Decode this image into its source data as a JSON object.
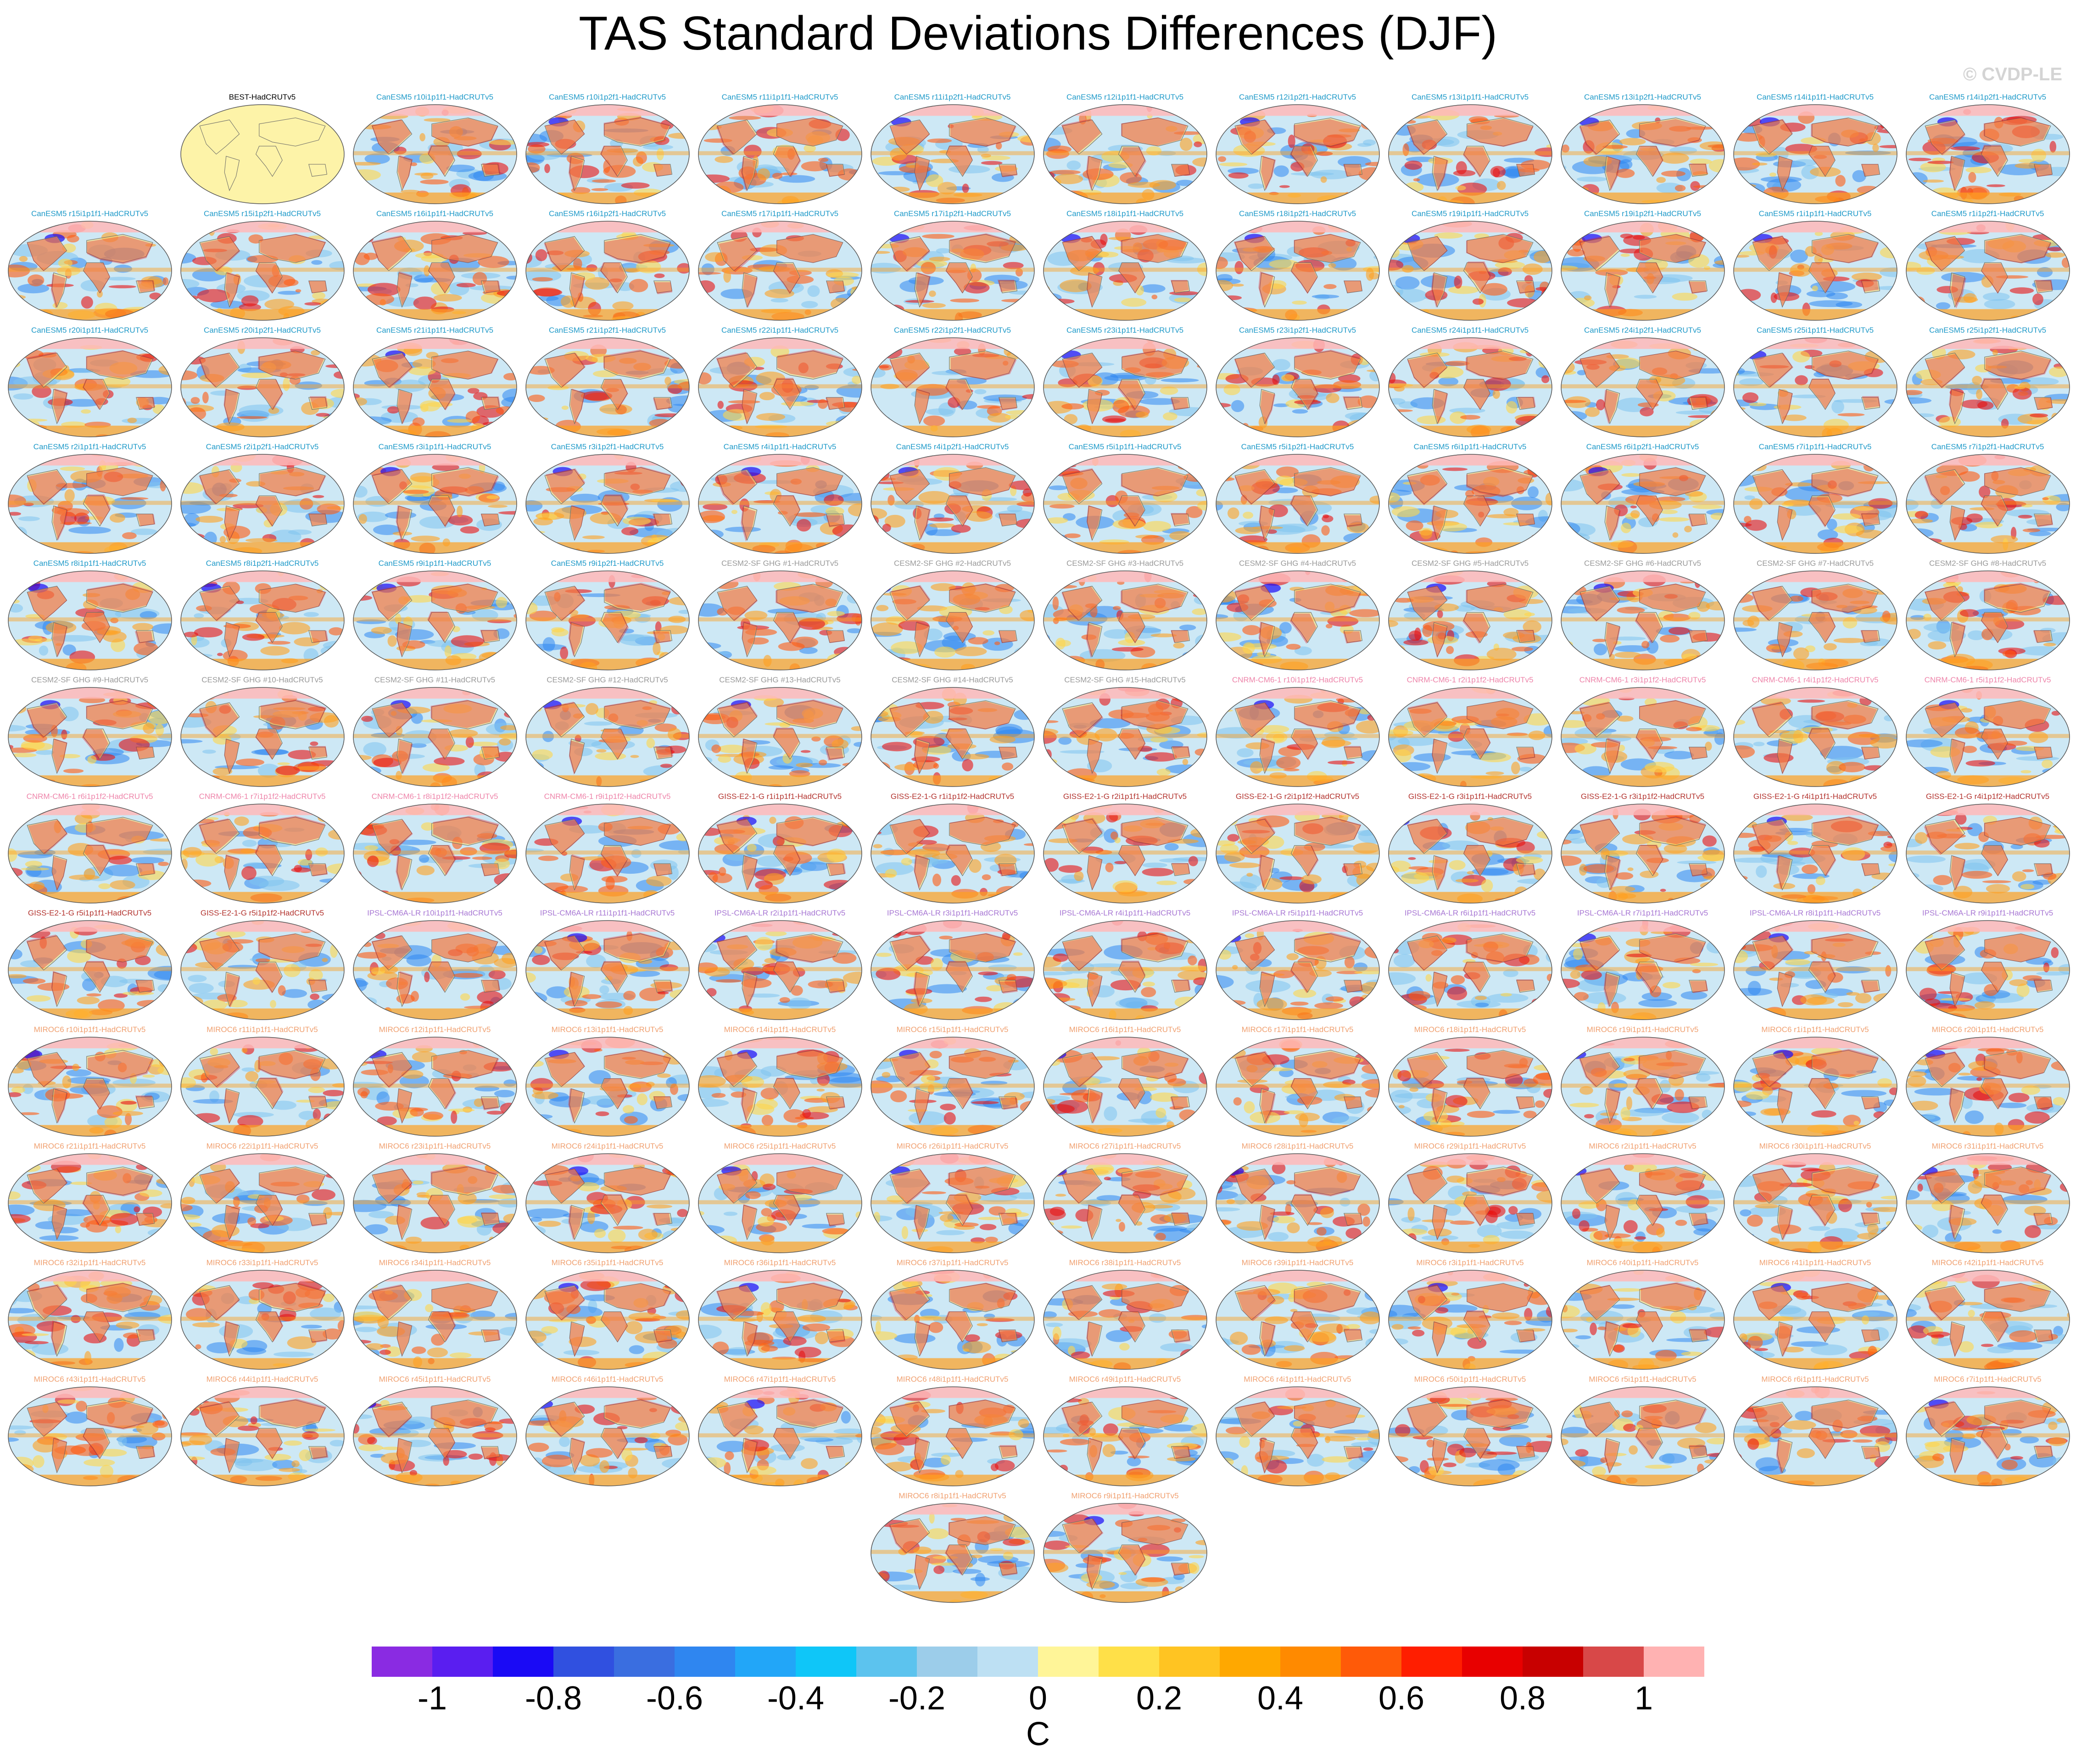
{
  "title": "TAS Standard Deviations Differences (DJF)",
  "watermark": "© CVDP-LE",
  "colorbar": {
    "units": "C",
    "tick_labels": [
      "-1",
      "-0.8",
      "-0.6",
      "-0.4",
      "-0.2",
      "0",
      "0.2",
      "0.4",
      "0.6",
      "0.8",
      "1"
    ],
    "colors": [
      "#8a2be2",
      "#5a1ef0",
      "#1a0af5",
      "#3050e0",
      "#3a6ee0",
      "#2f86f0",
      "#22a6f8",
      "#0fc6f8",
      "#5cc3ee",
      "#9ccdea",
      "#bde0f3",
      "#fff598",
      "#ffe048",
      "#ffc422",
      "#ffa800",
      "#ff8a00",
      "#ff5a08",
      "#ff1e00",
      "#e80000",
      "#c80000",
      "#d84848",
      "#ffb2b2"
    ]
  },
  "map_palette": {
    "ocean": "#cde8f5",
    "land": "#ffe070",
    "warm": [
      "#ffd64a",
      "#ffa020",
      "#ff5a10",
      "#e81010"
    ],
    "cold": [
      "#7fc3ee",
      "#2f86f0",
      "#1a0af5"
    ],
    "polar": "#ffb8b8",
    "best_base": "#fdf3a8",
    "outline": "#666666"
  },
  "label_colors": {
    "BEST": "#000000",
    "CanESM5": "#1f9ac9",
    "CESM2-SF GHG": "#9a9a9a",
    "CNRM-CM6-1": "#ee85aa",
    "GISS-E2-1-G": "#b3342f",
    "IPSL-CM6A-LR": "#a878d4",
    "MIROC6": "#f0a070"
  },
  "panels": [
    {
      "label": "BEST-HadCRUTv5",
      "family": "BEST"
    },
    {
      "label": "CanESM5 r10i1p1f1-HadCRUTv5",
      "family": "CanESM5"
    },
    {
      "label": "CanESM5 r10i1p2f1-HadCRUTv5",
      "family": "CanESM5"
    },
    {
      "label": "CanESM5 r11i1p1f1-HadCRUTv5",
      "family": "CanESM5"
    },
    {
      "label": "CanESM5 r11i1p2f1-HadCRUTv5",
      "family": "CanESM5"
    },
    {
      "label": "CanESM5 r12i1p1f1-HadCRUTv5",
      "family": "CanESM5"
    },
    {
      "label": "CanESM5 r12i1p2f1-HadCRUTv5",
      "family": "CanESM5"
    },
    {
      "label": "CanESM5 r13i1p1f1-HadCRUTv5",
      "family": "CanESM5"
    },
    {
      "label": "CanESM5 r13i1p2f1-HadCRUTv5",
      "family": "CanESM5"
    },
    {
      "label": "CanESM5 r14i1p1f1-HadCRUTv5",
      "family": "CanESM5"
    },
    {
      "label": "CanESM5 r14i1p2f1-HadCRUTv5",
      "family": "CanESM5"
    },
    {
      "label": "CanESM5 r15i1p1f1-HadCRUTv5",
      "family": "CanESM5"
    },
    {
      "label": "CanESM5 r15i1p2f1-HadCRUTv5",
      "family": "CanESM5"
    },
    {
      "label": "CanESM5 r16i1p1f1-HadCRUTv5",
      "family": "CanESM5"
    },
    {
      "label": "CanESM5 r16i1p2f1-HadCRUTv5",
      "family": "CanESM5"
    },
    {
      "label": "CanESM5 r17i1p1f1-HadCRUTv5",
      "family": "CanESM5"
    },
    {
      "label": "CanESM5 r17i1p2f1-HadCRUTv5",
      "family": "CanESM5"
    },
    {
      "label": "CanESM5 r18i1p1f1-HadCRUTv5",
      "family": "CanESM5"
    },
    {
      "label": "CanESM5 r18i1p2f1-HadCRUTv5",
      "family": "CanESM5"
    },
    {
      "label": "CanESM5 r19i1p1f1-HadCRUTv5",
      "family": "CanESM5"
    },
    {
      "label": "CanESM5 r19i1p2f1-HadCRUTv5",
      "family": "CanESM5"
    },
    {
      "label": "CanESM5 r1i1p1f1-HadCRUTv5",
      "family": "CanESM5"
    },
    {
      "label": "CanESM5 r1i1p2f1-HadCRUTv5",
      "family": "CanESM5"
    },
    {
      "label": "CanESM5 r20i1p1f1-HadCRUTv5",
      "family": "CanESM5"
    },
    {
      "label": "CanESM5 r20i1p2f1-HadCRUTv5",
      "family": "CanESM5"
    },
    {
      "label": "CanESM5 r21i1p1f1-HadCRUTv5",
      "family": "CanESM5"
    },
    {
      "label": "CanESM5 r21i1p2f1-HadCRUTv5",
      "family": "CanESM5"
    },
    {
      "label": "CanESM5 r22i1p1f1-HadCRUTv5",
      "family": "CanESM5"
    },
    {
      "label": "CanESM5 r22i1p2f1-HadCRUTv5",
      "family": "CanESM5"
    },
    {
      "label": "CanESM5 r23i1p1f1-HadCRUTv5",
      "family": "CanESM5"
    },
    {
      "label": "CanESM5 r23i1p2f1-HadCRUTv5",
      "family": "CanESM5"
    },
    {
      "label": "CanESM5 r24i1p1f1-HadCRUTv5",
      "family": "CanESM5"
    },
    {
      "label": "CanESM5 r24i1p2f1-HadCRUTv5",
      "family": "CanESM5"
    },
    {
      "label": "CanESM5 r25i1p1f1-HadCRUTv5",
      "family": "CanESM5"
    },
    {
      "label": "CanESM5 r25i1p2f1-HadCRUTv5",
      "family": "CanESM5"
    },
    {
      "label": "CanESM5 r2i1p1f1-HadCRUTv5",
      "family": "CanESM5"
    },
    {
      "label": "CanESM5 r2i1p2f1-HadCRUTv5",
      "family": "CanESM5"
    },
    {
      "label": "CanESM5 r3i1p1f1-HadCRUTv5",
      "family": "CanESM5"
    },
    {
      "label": "CanESM5 r3i1p2f1-HadCRUTv5",
      "family": "CanESM5"
    },
    {
      "label": "CanESM5 r4i1p1f1-HadCRUTv5",
      "family": "CanESM5"
    },
    {
      "label": "CanESM5 r4i1p2f1-HadCRUTv5",
      "family": "CanESM5"
    },
    {
      "label": "CanESM5 r5i1p1f1-HadCRUTv5",
      "family": "CanESM5"
    },
    {
      "label": "CanESM5 r5i1p2f1-HadCRUTv5",
      "family": "CanESM5"
    },
    {
      "label": "CanESM5 r6i1p1f1-HadCRUTv5",
      "family": "CanESM5"
    },
    {
      "label": "CanESM5 r6i1p2f1-HadCRUTv5",
      "family": "CanESM5"
    },
    {
      "label": "CanESM5 r7i1p1f1-HadCRUTv5",
      "family": "CanESM5"
    },
    {
      "label": "CanESM5 r7i1p2f1-HadCRUTv5",
      "family": "CanESM5"
    },
    {
      "label": "CanESM5 r8i1p1f1-HadCRUTv5",
      "family": "CanESM5"
    },
    {
      "label": "CanESM5 r8i1p2f1-HadCRUTv5",
      "family": "CanESM5"
    },
    {
      "label": "CanESM5 r9i1p1f1-HadCRUTv5",
      "family": "CanESM5"
    },
    {
      "label": "CanESM5 r9i1p2f1-HadCRUTv5",
      "family": "CanESM5"
    },
    {
      "label": "CESM2-SF GHG #1-HadCRUTv5",
      "family": "CESM2-SF GHG"
    },
    {
      "label": "CESM2-SF GHG #2-HadCRUTv5",
      "family": "CESM2-SF GHG"
    },
    {
      "label": "CESM2-SF GHG #3-HadCRUTv5",
      "family": "CESM2-SF GHG"
    },
    {
      "label": "CESM2-SF GHG #4-HadCRUTv5",
      "family": "CESM2-SF GHG"
    },
    {
      "label": "CESM2-SF GHG #5-HadCRUTv5",
      "family": "CESM2-SF GHG"
    },
    {
      "label": "CESM2-SF GHG #6-HadCRUTv5",
      "family": "CESM2-SF GHG"
    },
    {
      "label": "CESM2-SF GHG #7-HadCRUTv5",
      "family": "CESM2-SF GHG"
    },
    {
      "label": "CESM2-SF GHG #8-HadCRUTv5",
      "family": "CESM2-SF GHG"
    },
    {
      "label": "CESM2-SF GHG #9-HadCRUTv5",
      "family": "CESM2-SF GHG"
    },
    {
      "label": "CESM2-SF GHG #10-HadCRUTv5",
      "family": "CESM2-SF GHG"
    },
    {
      "label": "CESM2-SF GHG #11-HadCRUTv5",
      "family": "CESM2-SF GHG"
    },
    {
      "label": "CESM2-SF GHG #12-HadCRUTv5",
      "family": "CESM2-SF GHG"
    },
    {
      "label": "CESM2-SF GHG #13-HadCRUTv5",
      "family": "CESM2-SF GHG"
    },
    {
      "label": "CESM2-SF GHG #14-HadCRUTv5",
      "family": "CESM2-SF GHG"
    },
    {
      "label": "CESM2-SF GHG #15-HadCRUTv5",
      "family": "CESM2-SF GHG"
    },
    {
      "label": "CNRM-CM6-1 r10i1p1f2-HadCRUTv5",
      "family": "CNRM-CM6-1"
    },
    {
      "label": "CNRM-CM6-1 r2i1p1f2-HadCRUTv5",
      "family": "CNRM-CM6-1"
    },
    {
      "label": "CNRM-CM6-1 r3i1p1f2-HadCRUTv5",
      "family": "CNRM-CM6-1"
    },
    {
      "label": "CNRM-CM6-1 r4i1p1f2-HadCRUTv5",
      "family": "CNRM-CM6-1"
    },
    {
      "label": "CNRM-CM6-1 r5i1p1f2-HadCRUTv5",
      "family": "CNRM-CM6-1"
    },
    {
      "label": "CNRM-CM6-1 r6i1p1f2-HadCRUTv5",
      "family": "CNRM-CM6-1"
    },
    {
      "label": "CNRM-CM6-1 r7i1p1f2-HadCRUTv5",
      "family": "CNRM-CM6-1"
    },
    {
      "label": "CNRM-CM6-1 r8i1p1f2-HadCRUTv5",
      "family": "CNRM-CM6-1"
    },
    {
      "label": "CNRM-CM6-1 r9i1p1f2-HadCRUTv5",
      "family": "CNRM-CM6-1"
    },
    {
      "label": "GISS-E2-1-G r1i1p1f1-HadCRUTv5",
      "family": "GISS-E2-1-G"
    },
    {
      "label": "GISS-E2-1-G r1i1p1f2-HadCRUTv5",
      "family": "GISS-E2-1-G"
    },
    {
      "label": "GISS-E2-1-G r2i1p1f1-HadCRUTv5",
      "family": "GISS-E2-1-G"
    },
    {
      "label": "GISS-E2-1-G r2i1p1f2-HadCRUTv5",
      "family": "GISS-E2-1-G"
    },
    {
      "label": "GISS-E2-1-G r3i1p1f1-HadCRUTv5",
      "family": "GISS-E2-1-G"
    },
    {
      "label": "GISS-E2-1-G r3i1p1f2-HadCRUTv5",
      "family": "GISS-E2-1-G"
    },
    {
      "label": "GISS-E2-1-G r4i1p1f1-HadCRUTv5",
      "family": "GISS-E2-1-G"
    },
    {
      "label": "GISS-E2-1-G r4i1p1f2-HadCRUTv5",
      "family": "GISS-E2-1-G"
    },
    {
      "label": "GISS-E2-1-G r5i1p1f1-HadCRUTv5",
      "family": "GISS-E2-1-G"
    },
    {
      "label": "GISS-E2-1-G r5i1p1f2-HadCRUTv5",
      "family": "GISS-E2-1-G"
    },
    {
      "label": "IPSL-CM6A-LR r10i1p1f1-HadCRUTv5",
      "family": "IPSL-CM6A-LR"
    },
    {
      "label": "IPSL-CM6A-LR r11i1p1f1-HadCRUTv5",
      "family": "IPSL-CM6A-LR"
    },
    {
      "label": "IPSL-CM6A-LR r2i1p1f1-HadCRUTv5",
      "family": "IPSL-CM6A-LR"
    },
    {
      "label": "IPSL-CM6A-LR r3i1p1f1-HadCRUTv5",
      "family": "IPSL-CM6A-LR"
    },
    {
      "label": "IPSL-CM6A-LR r4i1p1f1-HadCRUTv5",
      "family": "IPSL-CM6A-LR"
    },
    {
      "label": "IPSL-CM6A-LR r5i1p1f1-HadCRUTv5",
      "family": "IPSL-CM6A-LR"
    },
    {
      "label": "IPSL-CM6A-LR r6i1p1f1-HadCRUTv5",
      "family": "IPSL-CM6A-LR"
    },
    {
      "label": "IPSL-CM6A-LR r7i1p1f1-HadCRUTv5",
      "family": "IPSL-CM6A-LR"
    },
    {
      "label": "IPSL-CM6A-LR r8i1p1f1-HadCRUTv5",
      "family": "IPSL-CM6A-LR"
    },
    {
      "label": "IPSL-CM6A-LR r9i1p1f1-HadCRUTv5",
      "family": "IPSL-CM6A-LR"
    },
    {
      "label": "MIROC6 r10i1p1f1-HadCRUTv5",
      "family": "MIROC6"
    },
    {
      "label": "MIROC6 r11i1p1f1-HadCRUTv5",
      "family": "MIROC6"
    },
    {
      "label": "MIROC6 r12i1p1f1-HadCRUTv5",
      "family": "MIROC6"
    },
    {
      "label": "MIROC6 r13i1p1f1-HadCRUTv5",
      "family": "MIROC6"
    },
    {
      "label": "MIROC6 r14i1p1f1-HadCRUTv5",
      "family": "MIROC6"
    },
    {
      "label": "MIROC6 r15i1p1f1-HadCRUTv5",
      "family": "MIROC6"
    },
    {
      "label": "MIROC6 r16i1p1f1-HadCRUTv5",
      "family": "MIROC6"
    },
    {
      "label": "MIROC6 r17i1p1f1-HadCRUTv5",
      "family": "MIROC6"
    },
    {
      "label": "MIROC6 r18i1p1f1-HadCRUTv5",
      "family": "MIROC6"
    },
    {
      "label": "MIROC6 r19i1p1f1-HadCRUTv5",
      "family": "MIROC6"
    },
    {
      "label": "MIROC6 r1i1p1f1-HadCRUTv5",
      "family": "MIROC6"
    },
    {
      "label": "MIROC6 r20i1p1f1-HadCRUTv5",
      "family": "MIROC6"
    },
    {
      "label": "MIROC6 r21i1p1f1-HadCRUTv5",
      "family": "MIROC6"
    },
    {
      "label": "MIROC6 r22i1p1f1-HadCRUTv5",
      "family": "MIROC6"
    },
    {
      "label": "MIROC6 r23i1p1f1-HadCRUTv5",
      "family": "MIROC6"
    },
    {
      "label": "MIROC6 r24i1p1f1-HadCRUTv5",
      "family": "MIROC6"
    },
    {
      "label": "MIROC6 r25i1p1f1-HadCRUTv5",
      "family": "MIROC6"
    },
    {
      "label": "MIROC6 r26i1p1f1-HadCRUTv5",
      "family": "MIROC6"
    },
    {
      "label": "MIROC6 r27i1p1f1-HadCRUTv5",
      "family": "MIROC6"
    },
    {
      "label": "MIROC6 r28i1p1f1-HadCRUTv5",
      "family": "MIROC6"
    },
    {
      "label": "MIROC6 r29i1p1f1-HadCRUTv5",
      "family": "MIROC6"
    },
    {
      "label": "MIROC6 r2i1p1f1-HadCRUTv5",
      "family": "MIROC6"
    },
    {
      "label": "MIROC6 r30i1p1f1-HadCRUTv5",
      "family": "MIROC6"
    },
    {
      "label": "MIROC6 r31i1p1f1-HadCRUTv5",
      "family": "MIROC6"
    },
    {
      "label": "MIROC6 r32i1p1f1-HadCRUTv5",
      "family": "MIROC6"
    },
    {
      "label": "MIROC6 r33i1p1f1-HadCRUTv5",
      "family": "MIROC6"
    },
    {
      "label": "MIROC6 r34i1p1f1-HadCRUTv5",
      "family": "MIROC6"
    },
    {
      "label": "MIROC6 r35i1p1f1-HadCRUTv5",
      "family": "MIROC6"
    },
    {
      "label": "MIROC6 r36i1p1f1-HadCRUTv5",
      "family": "MIROC6"
    },
    {
      "label": "MIROC6 r37i1p1f1-HadCRUTv5",
      "family": "MIROC6"
    },
    {
      "label": "MIROC6 r38i1p1f1-HadCRUTv5",
      "family": "MIROC6"
    },
    {
      "label": "MIROC6 r39i1p1f1-HadCRUTv5",
      "family": "MIROC6"
    },
    {
      "label": "MIROC6 r3i1p1f1-HadCRUTv5",
      "family": "MIROC6"
    },
    {
      "label": "MIROC6 r40i1p1f1-HadCRUTv5",
      "family": "MIROC6"
    },
    {
      "label": "MIROC6 r41i1p1f1-HadCRUTv5",
      "family": "MIROC6"
    },
    {
      "label": "MIROC6 r42i1p1f1-HadCRUTv5",
      "family": "MIROC6"
    },
    {
      "label": "MIROC6 r43i1p1f1-HadCRUTv5",
      "family": "MIROC6"
    },
    {
      "label": "MIROC6 r44i1p1f1-HadCRUTv5",
      "family": "MIROC6"
    },
    {
      "label": "MIROC6 r45i1p1f1-HadCRUTv5",
      "family": "MIROC6"
    },
    {
      "label": "MIROC6 r46i1p1f1-HadCRUTv5",
      "family": "MIROC6"
    },
    {
      "label": "MIROC6 r47i1p1f1-HadCRUTv5",
      "family": "MIROC6"
    },
    {
      "label": "MIROC6 r48i1p1f1-HadCRUTv5",
      "family": "MIROC6"
    },
    {
      "label": "MIROC6 r49i1p1f1-HadCRUTv5",
      "family": "MIROC6"
    },
    {
      "label": "MIROC6 r4i1p1f1-HadCRUTv5",
      "family": "MIROC6"
    },
    {
      "label": "MIROC6 r50i1p1f1-HadCRUTv5",
      "family": "MIROC6"
    },
    {
      "label": "MIROC6 r5i1p1f1-HadCRUTv5",
      "family": "MIROC6"
    },
    {
      "label": "MIROC6 r6i1p1f1-HadCRUTv5",
      "family": "MIROC6"
    },
    {
      "label": "MIROC6 r7i1p1f1-HadCRUTv5",
      "family": "MIROC6"
    },
    {
      "label": "MIROC6 r8i1p1f1-HadCRUTv5",
      "family": "MIROC6"
    },
    {
      "label": "MIROC6 r9i1p1f1-HadCRUTv5",
      "family": "MIROC6"
    }
  ]
}
